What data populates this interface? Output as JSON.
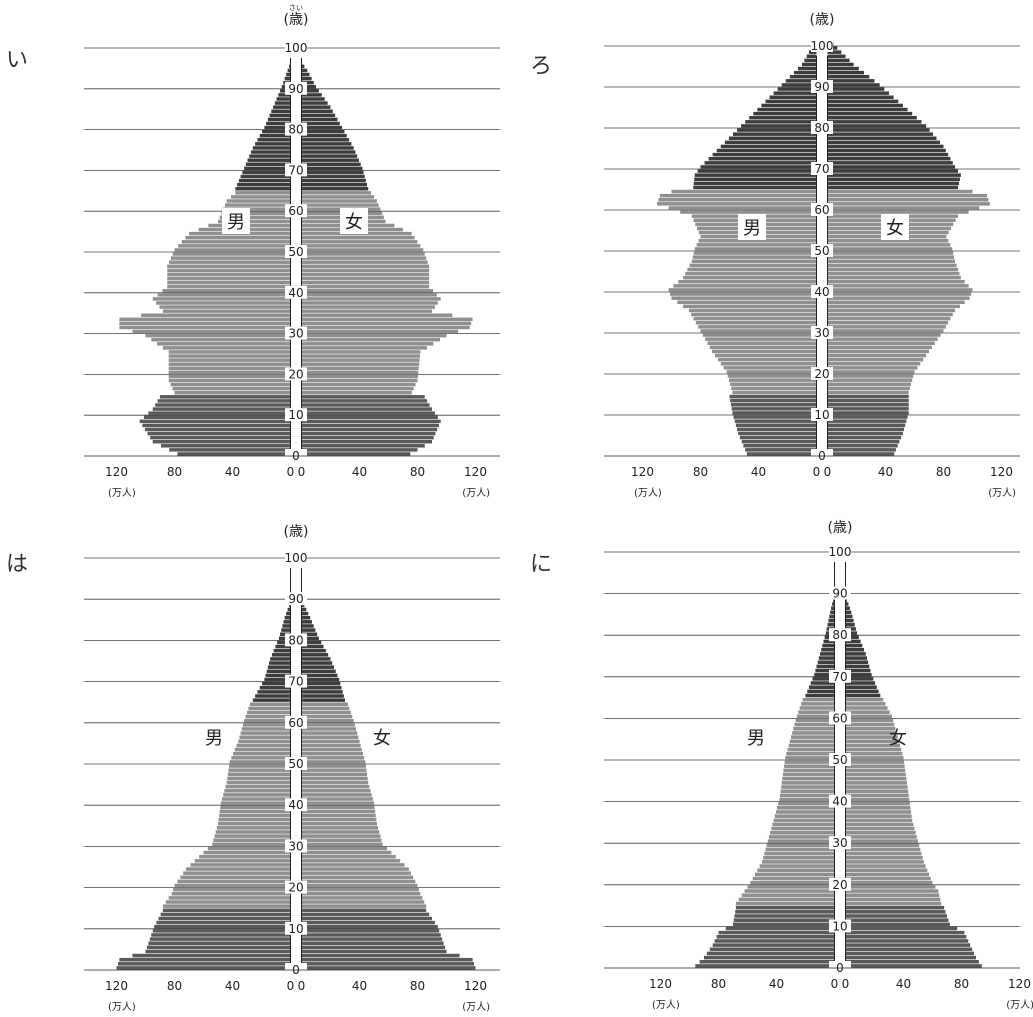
{
  "y_axis_title": "(歳)",
  "y_axis_ruby": "さい",
  "x_unit_label": "(万人)",
  "male_label": "男",
  "female_label": "女",
  "colors": {
    "elderly": "#3d3d3d",
    "working": "#8f8f8f",
    "child": "#595959",
    "gridline": "#444444"
  },
  "age_groups": {
    "child_max_age": 14,
    "elderly_min_age": 65
  },
  "chart_data": [
    {
      "type": "bar",
      "panel_label": "い",
      "orientation": "population-pyramid",
      "y_ticks": [
        0,
        10,
        20,
        30,
        40,
        50,
        60,
        70,
        80,
        90,
        100
      ],
      "x_ticks": [
        120,
        80,
        40,
        0
      ],
      "xlim": [
        0,
        140
      ],
      "ylim": [
        0,
        100
      ],
      "male_profile": [
        [
          0,
          78
        ],
        [
          3,
          95
        ],
        [
          8,
          104
        ],
        [
          11,
          95
        ],
        [
          14,
          90
        ],
        [
          15,
          80
        ],
        [
          18,
          84
        ],
        [
          25,
          84
        ],
        [
          29,
          100
        ],
        [
          31,
          118
        ],
        [
          33,
          118
        ],
        [
          35,
          88
        ],
        [
          38,
          95
        ],
        [
          41,
          85
        ],
        [
          46,
          85
        ],
        [
          50,
          80
        ],
        [
          54,
          70
        ],
        [
          57,
          50
        ],
        [
          62,
          44
        ],
        [
          64,
          38
        ],
        [
          65,
          38
        ],
        [
          70,
          32
        ],
        [
          75,
          26
        ],
        [
          80,
          18
        ],
        [
          85,
          12
        ],
        [
          90,
          6
        ],
        [
          94,
          2
        ],
        [
          96,
          0
        ]
      ],
      "female_profile": [
        [
          0,
          75
        ],
        [
          3,
          90
        ],
        [
          8,
          96
        ],
        [
          11,
          90
        ],
        [
          14,
          85
        ],
        [
          15,
          76
        ],
        [
          18,
          80
        ],
        [
          25,
          82
        ],
        [
          29,
          100
        ],
        [
          31,
          116
        ],
        [
          33,
          118
        ],
        [
          35,
          90
        ],
        [
          38,
          96
        ],
        [
          41,
          88
        ],
        [
          46,
          88
        ],
        [
          50,
          84
        ],
        [
          54,
          76
        ],
        [
          57,
          58
        ],
        [
          62,
          52
        ],
        [
          64,
          48
        ],
        [
          65,
          46
        ],
        [
          70,
          42
        ],
        [
          75,
          36
        ],
        [
          80,
          28
        ],
        [
          85,
          20
        ],
        [
          90,
          10
        ],
        [
          94,
          4
        ],
        [
          96,
          0
        ]
      ]
    },
    {
      "type": "bar",
      "panel_label": "ろ",
      "orientation": "population-pyramid",
      "y_ticks": [
        0,
        10,
        20,
        30,
        40,
        50,
        60,
        70,
        80,
        90,
        100
      ],
      "x_ticks": [
        120,
        80,
        40,
        0
      ],
      "xlim": [
        0,
        140
      ],
      "ylim": [
        0,
        100
      ],
      "male_profile": [
        [
          0,
          48
        ],
        [
          5,
          54
        ],
        [
          10,
          58
        ],
        [
          14,
          60
        ],
        [
          15,
          58
        ],
        [
          20,
          62
        ],
        [
          25,
          72
        ],
        [
          30,
          80
        ],
        [
          35,
          88
        ],
        [
          38,
          100
        ],
        [
          40,
          102
        ],
        [
          43,
          92
        ],
        [
          47,
          86
        ],
        [
          50,
          84
        ],
        [
          53,
          80
        ],
        [
          58,
          86
        ],
        [
          61,
          110
        ],
        [
          63,
          108
        ],
        [
          64,
          100
        ],
        [
          65,
          85
        ],
        [
          68,
          84
        ],
        [
          70,
          80
        ],
        [
          75,
          66
        ],
        [
          80,
          52
        ],
        [
          85,
          38
        ],
        [
          90,
          24
        ],
        [
          95,
          10
        ],
        [
          100,
          2
        ]
      ],
      "female_profile": [
        [
          0,
          46
        ],
        [
          5,
          52
        ],
        [
          10,
          56
        ],
        [
          14,
          56
        ],
        [
          15,
          56
        ],
        [
          20,
          60
        ],
        [
          25,
          70
        ],
        [
          30,
          80
        ],
        [
          35,
          88
        ],
        [
          38,
          98
        ],
        [
          40,
          100
        ],
        [
          43,
          92
        ],
        [
          47,
          88
        ],
        [
          50,
          86
        ],
        [
          53,
          82
        ],
        [
          58,
          90
        ],
        [
          61,
          112
        ],
        [
          63,
          110
        ],
        [
          64,
          100
        ],
        [
          65,
          90
        ],
        [
          68,
          92
        ],
        [
          70,
          88
        ],
        [
          75,
          80
        ],
        [
          80,
          68
        ],
        [
          85,
          52
        ],
        [
          90,
          36
        ],
        [
          95,
          18
        ],
        [
          100,
          4
        ]
      ]
    },
    {
      "type": "bar",
      "panel_label": "は",
      "orientation": "population-pyramid",
      "y_ticks": [
        0,
        10,
        20,
        30,
        40,
        50,
        60,
        70,
        80,
        90,
        100
      ],
      "x_ticks": [
        120,
        80,
        40,
        0
      ],
      "xlim": [
        0,
        140
      ],
      "ylim": [
        0,
        100
      ],
      "male_profile": [
        [
          0,
          120
        ],
        [
          2,
          118
        ],
        [
          4,
          100
        ],
        [
          8,
          96
        ],
        [
          10,
          94
        ],
        [
          14,
          88
        ],
        [
          15,
          88
        ],
        [
          18,
          82
        ],
        [
          20,
          80
        ],
        [
          24,
          72
        ],
        [
          28,
          60
        ],
        [
          30,
          54
        ],
        [
          35,
          50
        ],
        [
          40,
          48
        ],
        [
          45,
          44
        ],
        [
          50,
          42
        ],
        [
          55,
          36
        ],
        [
          60,
          32
        ],
        [
          64,
          28
        ],
        [
          65,
          26
        ],
        [
          70,
          18
        ],
        [
          75,
          14
        ],
        [
          80,
          8
        ],
        [
          85,
          4
        ],
        [
          88,
          1
        ],
        [
          89,
          0
        ]
      ],
      "female_profile": [
        [
          0,
          120
        ],
        [
          2,
          118
        ],
        [
          4,
          100
        ],
        [
          8,
          96
        ],
        [
          10,
          94
        ],
        [
          14,
          86
        ],
        [
          15,
          86
        ],
        [
          18,
          82
        ],
        [
          20,
          80
        ],
        [
          24,
          74
        ],
        [
          28,
          62
        ],
        [
          30,
          56
        ],
        [
          35,
          52
        ],
        [
          40,
          50
        ],
        [
          45,
          46
        ],
        [
          50,
          44
        ],
        [
          55,
          40
        ],
        [
          60,
          36
        ],
        [
          64,
          32
        ],
        [
          65,
          30
        ],
        [
          70,
          26
        ],
        [
          75,
          20
        ],
        [
          80,
          12
        ],
        [
          85,
          6
        ],
        [
          88,
          2
        ],
        [
          89,
          0
        ]
      ]
    },
    {
      "type": "bar",
      "panel_label": "に",
      "orientation": "population-pyramid",
      "y_ticks": [
        0,
        10,
        20,
        30,
        40,
        50,
        60,
        70,
        80,
        90,
        100
      ],
      "x_ticks": [
        120,
        80,
        40,
        0
      ],
      "xlim": [
        0,
        140
      ],
      "ylim": [
        0,
        100
      ],
      "male_profile": [
        [
          0,
          96
        ],
        [
          2,
          90
        ],
        [
          5,
          84
        ],
        [
          8,
          80
        ],
        [
          10,
          70
        ],
        [
          14,
          68
        ],
        [
          15,
          68
        ],
        [
          18,
          62
        ],
        [
          20,
          58
        ],
        [
          25,
          50
        ],
        [
          30,
          46
        ],
        [
          35,
          42
        ],
        [
          40,
          38
        ],
        [
          45,
          36
        ],
        [
          50,
          34
        ],
        [
          55,
          30
        ],
        [
          60,
          26
        ],
        [
          64,
          22
        ],
        [
          65,
          20
        ],
        [
          70,
          14
        ],
        [
          75,
          10
        ],
        [
          80,
          6
        ],
        [
          85,
          3
        ],
        [
          88,
          1
        ],
        [
          89,
          0
        ]
      ],
      "female_profile": [
        [
          0,
          94
        ],
        [
          2,
          90
        ],
        [
          5,
          86
        ],
        [
          8,
          82
        ],
        [
          10,
          72
        ],
        [
          14,
          68
        ],
        [
          15,
          66
        ],
        [
          18,
          64
        ],
        [
          20,
          60
        ],
        [
          25,
          54
        ],
        [
          30,
          50
        ],
        [
          35,
          46
        ],
        [
          40,
          44
        ],
        [
          45,
          42
        ],
        [
          50,
          40
        ],
        [
          55,
          36
        ],
        [
          60,
          32
        ],
        [
          64,
          26
        ],
        [
          65,
          24
        ],
        [
          70,
          18
        ],
        [
          75,
          14
        ],
        [
          80,
          8
        ],
        [
          85,
          4
        ],
        [
          88,
          1
        ],
        [
          89,
          0
        ]
      ]
    }
  ]
}
